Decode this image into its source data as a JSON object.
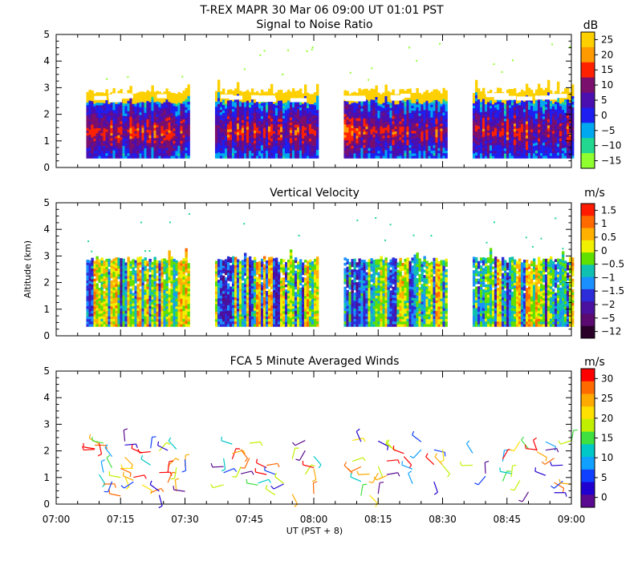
{
  "header": {
    "title": "T-REX   MAPR 30 Mar 06   09:00 UT   01:01   PST"
  },
  "x_axis": {
    "label": "UT  (PST + 8)",
    "ticks": [
      "07:00",
      "07:15",
      "07:30",
      "07:45",
      "08:00",
      "08:15",
      "08:30",
      "08:45",
      "09:00"
    ]
  },
  "chart_data": [
    {
      "type": "heatmap",
      "title": "Signal to Noise Ratio",
      "ylabel": "",
      "ylim": [
        0,
        5
      ],
      "yticks": [
        0,
        1,
        2,
        3,
        4,
        5
      ],
      "xlim_minutes": [
        0,
        120
      ],
      "units": "dB",
      "colorbar_labels": [
        "25",
        "20",
        "15",
        "10",
        "5",
        "0",
        "−5",
        "−10",
        "−15"
      ],
      "colorbar_colors": [
        "#ffd000",
        "#ff9a00",
        "#ff2200",
        "#7a0f6e",
        "#4b0fb0",
        "#1e1ef0",
        "#00a8f0",
        "#22d890",
        "#90ff30"
      ],
      "data_segments_minutes": [
        [
          7,
          31
        ],
        [
          37,
          61
        ],
        [
          67,
          91
        ],
        [
          97,
          121
        ]
      ],
      "valid_altitude_km": [
        0.35,
        3.0
      ]
    },
    {
      "type": "heatmap",
      "title": "Vertical Velocity",
      "ylabel": "Altitude (km)",
      "ylim": [
        0,
        5
      ],
      "yticks": [
        0,
        1,
        2,
        3,
        4,
        5
      ],
      "xlim_minutes": [
        0,
        120
      ],
      "units": "m/s",
      "colorbar_labels": [
        "1.5",
        "1",
        "0.5",
        "0",
        "−0.5",
        "−1",
        "−1.5",
        "−2",
        "−5",
        "−12"
      ],
      "colorbar_colors": [
        "#ff1a00",
        "#ff6a00",
        "#ffb000",
        "#f0f000",
        "#60e000",
        "#10c0b0",
        "#1a90ff",
        "#2c2cd8",
        "#4a10a0",
        "#5a0a70",
        "#2a0028"
      ],
      "data_segments_minutes": [
        [
          7,
          31
        ],
        [
          37,
          61
        ],
        [
          67,
          91
        ],
        [
          97,
          121
        ]
      ],
      "valid_altitude_km": [
        0.35,
        3.0
      ]
    },
    {
      "type": "scatter",
      "title": "FCA 5 Minute Averaged Winds",
      "ylabel": "",
      "ylim": [
        0,
        5
      ],
      "yticks": [
        0,
        1,
        2,
        3,
        4,
        5
      ],
      "xlim_minutes": [
        0,
        120
      ],
      "units": "m/s",
      "colorbar_labels": [
        "30",
        "25",
        "20",
        "15",
        "10",
        "5",
        "0"
      ],
      "colorbar_colors": [
        "#ff0000",
        "#ff6a00",
        "#ffaa00",
        "#ffe000",
        "#c0f000",
        "#40e040",
        "#00c8c8",
        "#10a0ff",
        "#1040ff",
        "#2000d0",
        "#5a0a90"
      ],
      "barb_times_minutes": [
        9,
        10,
        11,
        13,
        15,
        16,
        18,
        20,
        22,
        24,
        26,
        28,
        30,
        39,
        41,
        43,
        45,
        47,
        49,
        51,
        53,
        55,
        58,
        60,
        69,
        71,
        73,
        75,
        77,
        79,
        81,
        83,
        85,
        88,
        90,
        97,
        100,
        104,
        106,
        108,
        110,
        112,
        114,
        116,
        118,
        120
      ],
      "barb_altitudes_km": [
        0.4,
        0.8,
        1.1,
        1.4,
        1.7,
        2.0,
        2.3
      ]
    }
  ]
}
